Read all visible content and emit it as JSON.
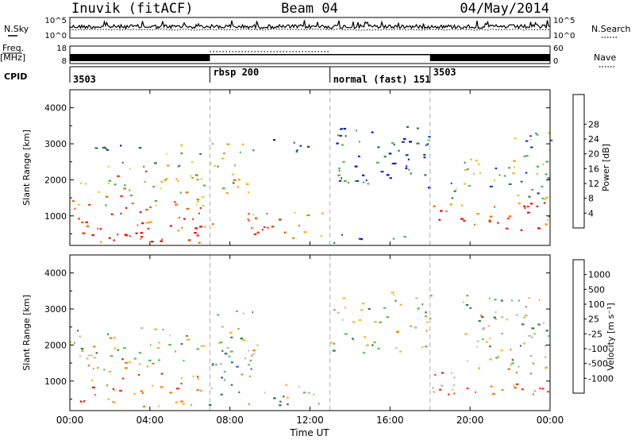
{
  "header": {
    "station_title": "Inuvik (fitACF)",
    "beam_label": "Beam 04",
    "date_label": "04/May/2014"
  },
  "left_labels": {
    "nsky": "N.Sky",
    "freq": "Freq.",
    "freq_unit": "[MHz]",
    "cpid": "CPID"
  },
  "right_labels": {
    "nsearch": "N.Search",
    "nave": "Nave"
  },
  "noise_axis": {
    "top": "10^5",
    "bottom": "10^0"
  },
  "freq_axis": {
    "top": "18",
    "bottom": "8"
  },
  "nave_axis": {
    "top": "60",
    "bottom": "0"
  },
  "cpid_segments": [
    {
      "label": "3503",
      "start": 0,
      "end": 7
    },
    {
      "label": "rbsp 200",
      "start": 7,
      "end": 13
    },
    {
      "label": "normal (fast) 151",
      "start": 13,
      "end": 18
    },
    {
      "label": "3503",
      "start": 18,
      "end": 24
    }
  ],
  "chart_data": [
    {
      "type": "heatmap",
      "title": "",
      "xlabel": "Time UT",
      "ylabel": "Slant Range [km]",
      "x_ticks": [
        "00:00",
        "04:00",
        "08:00",
        "12:00",
        "16:00",
        "20:00",
        "00:00"
      ],
      "xlim_hours": [
        0,
        24
      ],
      "ylim_km": [
        180,
        4500
      ],
      "y_ticks": [
        "1000",
        "2000",
        "3000",
        "4000"
      ],
      "y_tick_values": [
        1000,
        2000,
        3000,
        4000
      ],
      "colorbar_label": "Power [dB]",
      "colorbar_ticks": [
        "4",
        "8",
        "12",
        "16",
        "20",
        "24",
        "28"
      ],
      "colorbar_colors": [
        "#0000ff",
        "#1e3cb4",
        "#2e7d4a",
        "#4fb84f",
        "#c8dc28",
        "#ffa000",
        "#ff6400",
        "#ff2800",
        "#ff0000"
      ],
      "scatter_regions": [
        {
          "t0": 0.0,
          "t1": 6.7,
          "r0": 300,
          "r1": 1300,
          "level": 0.85
        },
        {
          "t0": 0.0,
          "t1": 6.7,
          "r0": 1300,
          "r1": 2300,
          "level": 0.6
        },
        {
          "t0": 1.0,
          "t1": 6.5,
          "r0": 2300,
          "r1": 3000,
          "level": 0.35
        },
        {
          "t0": 6.0,
          "t1": 7.2,
          "r0": 250,
          "r1": 900,
          "level": 0.95
        },
        {
          "t0": 7.0,
          "t1": 9.2,
          "r0": 1600,
          "r1": 3100,
          "level": 0.5
        },
        {
          "t0": 8.8,
          "t1": 12.6,
          "r0": 250,
          "r1": 1200,
          "level": 0.7
        },
        {
          "t0": 9.5,
          "t1": 12.5,
          "r0": 2800,
          "r1": 3200,
          "level": 0.15
        },
        {
          "t0": 13.0,
          "t1": 18.0,
          "r0": 1800,
          "r1": 3500,
          "level": 0.2
        },
        {
          "t0": 12.8,
          "t1": 17.5,
          "r0": 250,
          "r1": 500,
          "level": 0.25
        },
        {
          "t0": 18.0,
          "t1": 24.0,
          "r0": 600,
          "r1": 1400,
          "level": 0.8
        },
        {
          "t0": 19.0,
          "t1": 24.0,
          "r0": 1400,
          "r1": 2600,
          "level": 0.4
        },
        {
          "t0": 22.0,
          "t1": 24.0,
          "r0": 2600,
          "r1": 3600,
          "level": 0.3
        }
      ]
    },
    {
      "type": "heatmap",
      "title": "",
      "xlabel": "Time UT",
      "ylabel": "Slant Range [km]",
      "x_ticks": [
        "00:00",
        "04:00",
        "08:00",
        "12:00",
        "16:00",
        "20:00",
        "00:00"
      ],
      "xlim_hours": [
        0,
        24
      ],
      "ylim_km": [
        180,
        4500
      ],
      "y_ticks": [
        "1000",
        "2000",
        "3000",
        "4000"
      ],
      "y_tick_values": [
        1000,
        2000,
        3000,
        4000
      ],
      "colorbar_label": "Velocity [m s⁻¹]",
      "colorbar_ticks": [
        "1000",
        "500",
        "100",
        "25",
        "-25",
        "-100",
        "-500",
        "-1000"
      ],
      "colorbar_colors": [
        "#1030b8",
        "#2e6ec8",
        "#2e7d4a",
        "#5cc25c",
        "#c0c0b8",
        "#ffb428",
        "#ff7800",
        "#ff3000",
        "#ff0000"
      ],
      "scatter_regions": [
        {
          "t0": 0.0,
          "t1": 6.7,
          "r0": 300,
          "r1": 1300,
          "level": 0.78
        },
        {
          "t0": 0.0,
          "t1": 6.7,
          "r0": 1300,
          "r1": 2500,
          "level": 0.5
        },
        {
          "t0": 6.8,
          "t1": 9.2,
          "r0": 300,
          "r1": 1600,
          "level": 0.3
        },
        {
          "t0": 7.0,
          "t1": 9.5,
          "r0": 1600,
          "r1": 3000,
          "level": 0.5
        },
        {
          "t0": 9.0,
          "t1": 12.6,
          "r0": 300,
          "r1": 1000,
          "level": 0.5
        },
        {
          "t0": 13.0,
          "t1": 18.0,
          "r0": 1800,
          "r1": 3500,
          "level": 0.5
        },
        {
          "t0": 18.0,
          "t1": 24.0,
          "r0": 600,
          "r1": 1400,
          "level": 0.72
        },
        {
          "t0": 19.5,
          "t1": 24.0,
          "r0": 1400,
          "r1": 3400,
          "level": 0.48
        }
      ]
    }
  ]
}
